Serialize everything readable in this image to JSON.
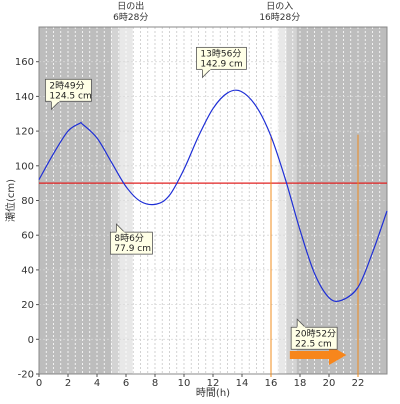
{
  "chart_data": {
    "type": "line",
    "xlabel": "時間(h)",
    "ylabel": "潮位(cm)",
    "xlim": [
      0,
      24
    ],
    "ylim": [
      -20,
      180
    ],
    "xticks": [
      0,
      2,
      4,
      6,
      8,
      10,
      12,
      14,
      16,
      18,
      20,
      22
    ],
    "yticks": [
      -20,
      0,
      20,
      40,
      60,
      80,
      100,
      120,
      140,
      160
    ],
    "reference_line": 90,
    "sunrise": {
      "time": 6.4667,
      "label_top": "日の出",
      "label_bottom": "6時28分"
    },
    "sunset": {
      "time": 16.4667,
      "label_top": "日の入",
      "label_bottom": "16時28分"
    },
    "marker_times": [
      16,
      22
    ],
    "x": [
      0,
      1,
      2,
      2.8167,
      3,
      4,
      5,
      6,
      7,
      8.1,
      9,
      10,
      11,
      12,
      13,
      13.9333,
      15,
      16,
      17,
      18,
      19,
      20,
      20.8667,
      22,
      23,
      24
    ],
    "y": [
      92,
      107,
      120,
      124.5,
      124,
      116,
      102,
      88,
      79.5,
      77.9,
      83,
      98,
      117,
      133,
      142,
      142.9,
      134,
      117,
      92,
      63,
      38,
      24,
      22.5,
      30,
      50,
      74
    ],
    "annotations": [
      {
        "time_label": "2時49分",
        "value_label": "124.5 cm",
        "x": 2.8167,
        "y": 124.5
      },
      {
        "time_label": "8時6分",
        "value_label": "77.9 cm",
        "x": 8.1,
        "y": 77.9
      },
      {
        "time_label": "13時56分",
        "value_label": "142.9 cm",
        "x": 13.9333,
        "y": 142.9
      },
      {
        "time_label": "20時52分",
        "value_label": "22.5 cm",
        "x": 20.8667,
        "y": 22.5
      }
    ],
    "colors": {
      "night": "#bdbdbd",
      "twilight_dark": "#d3d3d3",
      "twilight_light": "#e8e8e8",
      "day": "#ffffff",
      "tide_line": "#1f2fd6",
      "reference_line": "#e02020",
      "marker_line": "#f08c1e",
      "arrow": "#f7861c",
      "callout_fill": "#ffffe6"
    }
  }
}
